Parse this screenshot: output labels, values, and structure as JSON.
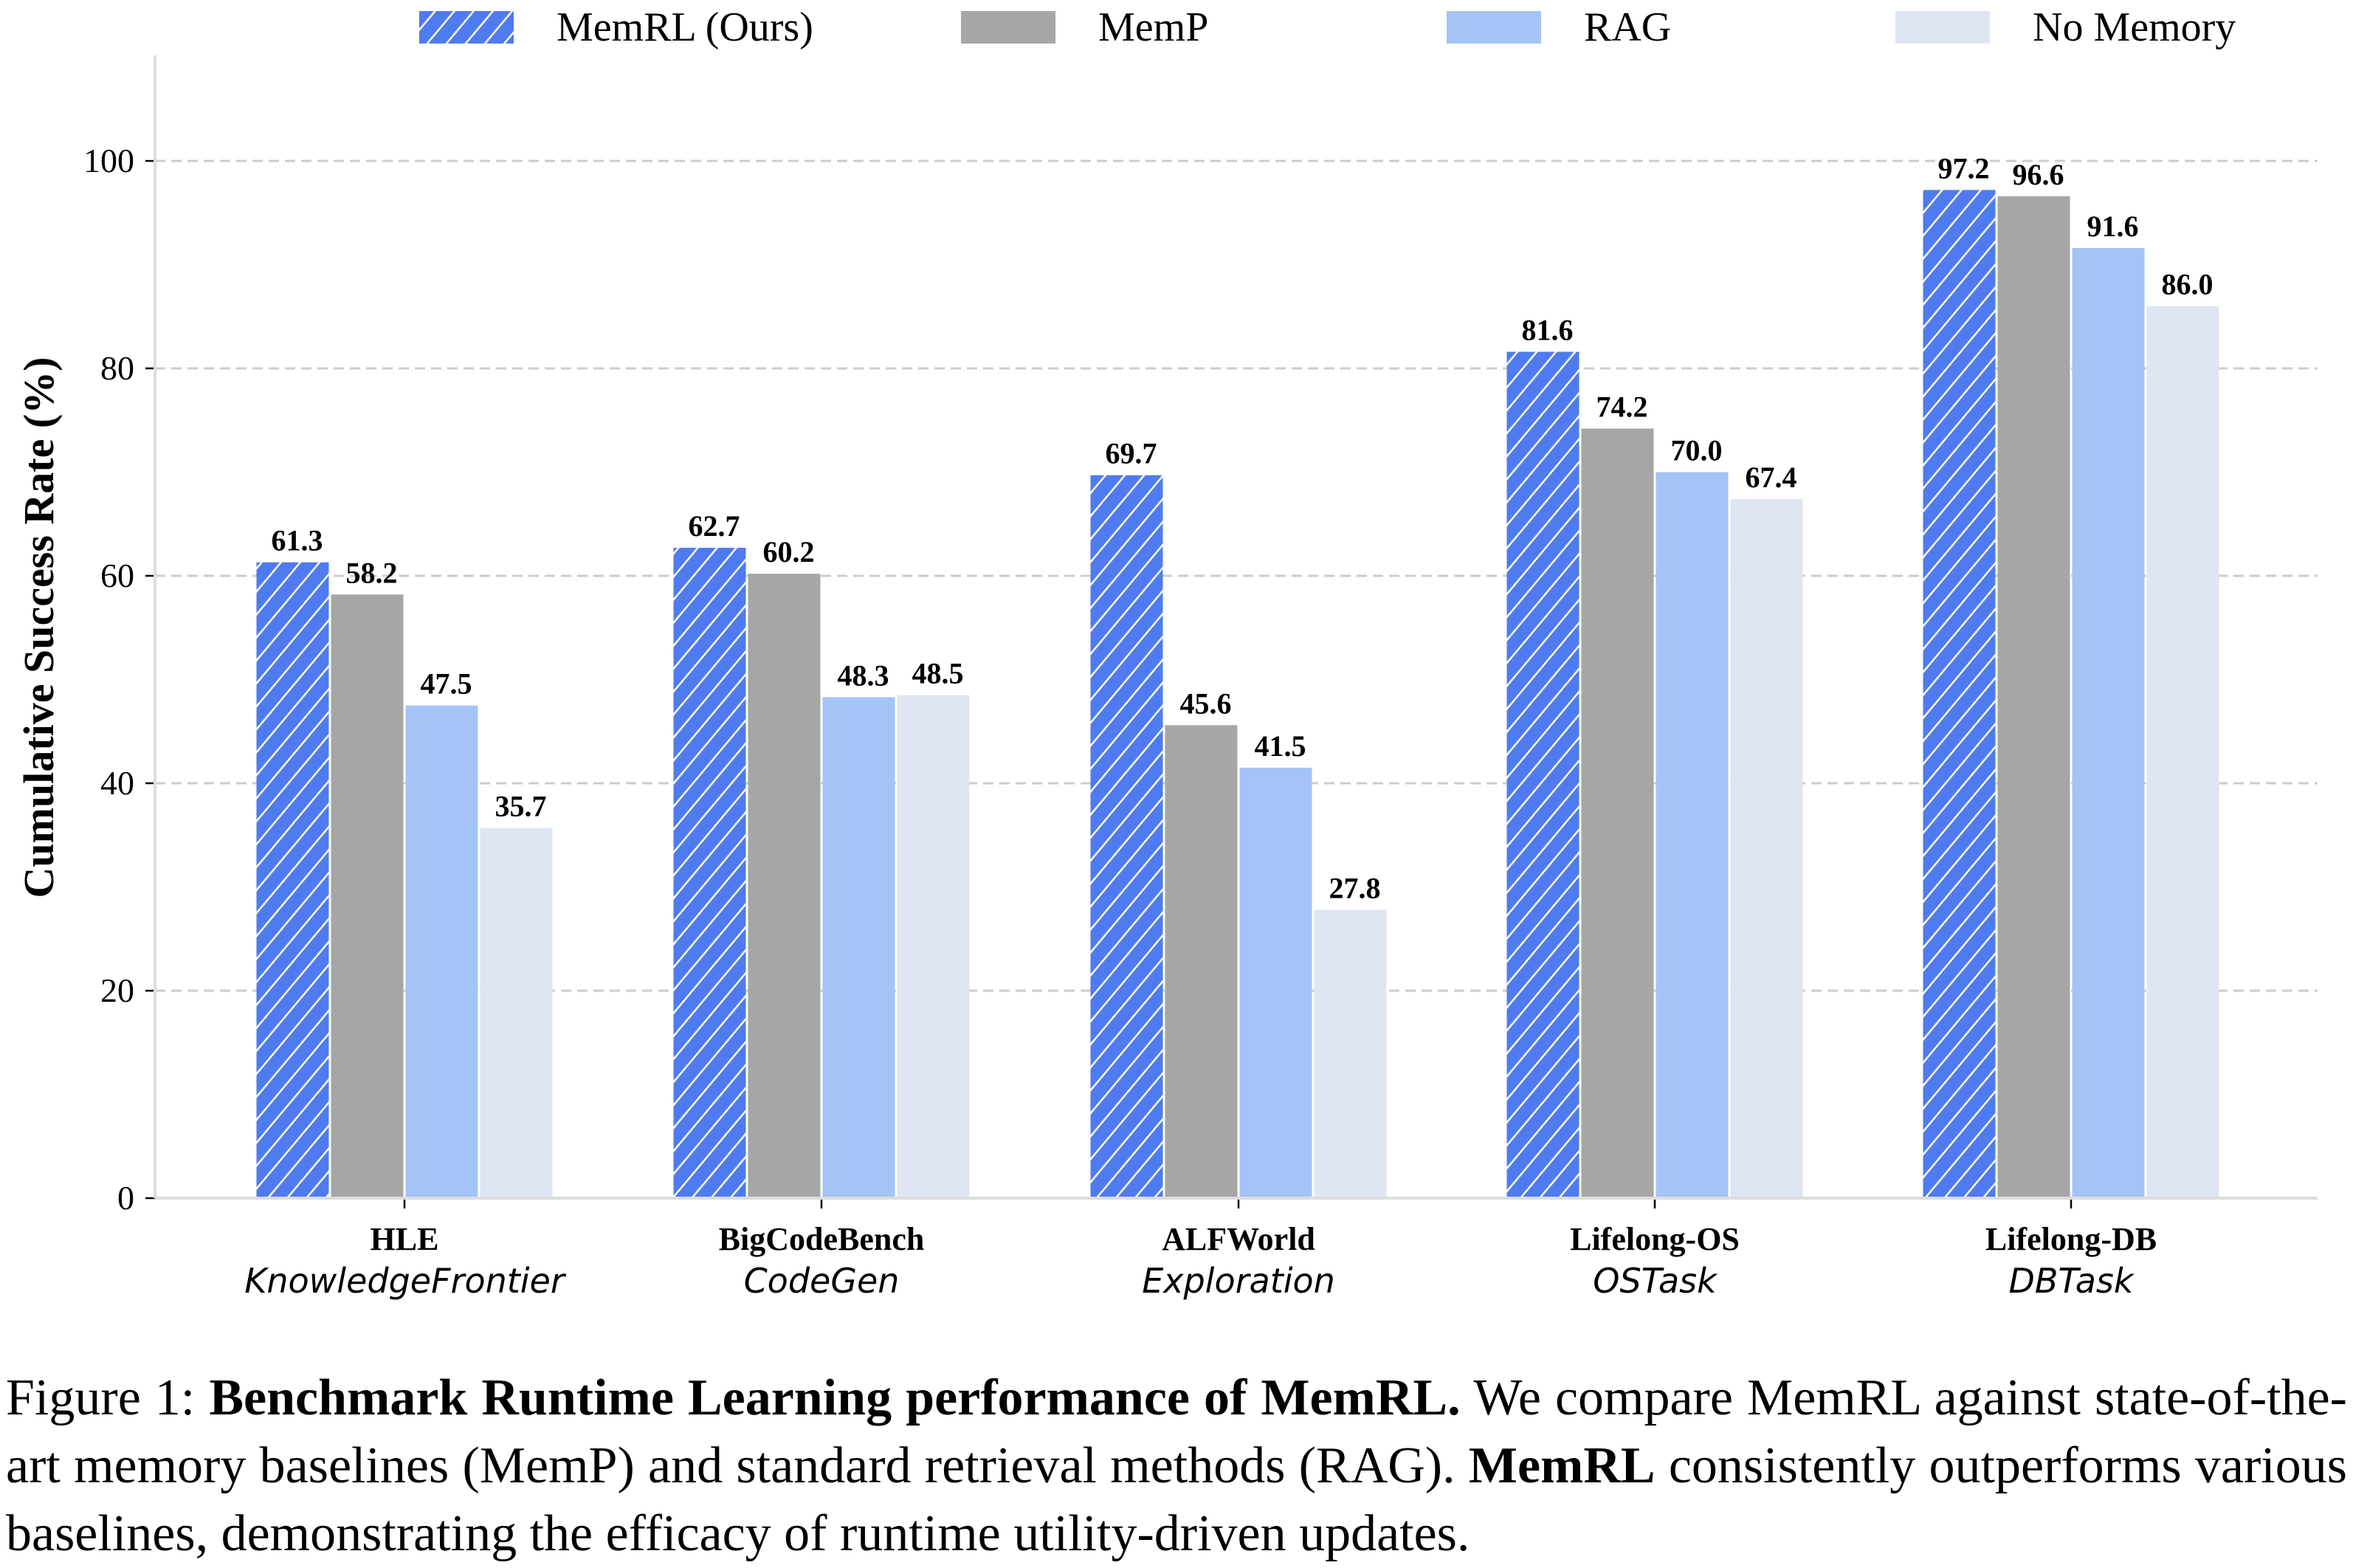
{
  "chart_data": {
    "type": "bar",
    "title": "",
    "xlabel": "",
    "ylabel": "Cumulative Success Rate (%)",
    "ylim": [
      0,
      110
    ],
    "yticks": [
      0,
      20,
      40,
      60,
      80,
      100
    ],
    "grid": "y-dashed",
    "legend": "top-center",
    "categories": [
      {
        "name": "HLE",
        "subtitle": "KnowledgeFrontier"
      },
      {
        "name": "BigCodeBench",
        "subtitle": "CodeGen"
      },
      {
        "name": "ALFWorld",
        "subtitle": "Exploration"
      },
      {
        "name": "Lifelong-OS",
        "subtitle": "OSTask"
      },
      {
        "name": "Lifelong-DB",
        "subtitle": "DBTask"
      }
    ],
    "series": [
      {
        "name": "MemRL (Ours)",
        "color": "#4f7bf0",
        "hatch": true,
        "values": [
          61.3,
          62.7,
          69.7,
          81.6,
          97.2
        ]
      },
      {
        "name": "MemP",
        "color": "#a6a6a6",
        "hatch": false,
        "values": [
          58.2,
          60.2,
          45.6,
          74.2,
          96.6
        ]
      },
      {
        "name": "RAG",
        "color": "#a4c4f7",
        "hatch": false,
        "values": [
          47.5,
          48.3,
          41.5,
          70.0,
          91.6
        ]
      },
      {
        "name": "No Memory",
        "color": "#dfe5f2",
        "hatch": false,
        "values": [
          35.7,
          48.5,
          27.8,
          67.4,
          86.0
        ]
      }
    ]
  },
  "caption": {
    "prefix": "Figure 1: ",
    "bold_title": "Benchmark Runtime Learning performance of MemRL.",
    "sentence1": " We compare MemRL against state-of-the-art memory baselines (MemP) and standard retrieval methods (RAG). ",
    "bold_name": "MemRL",
    "sentence2": " consistently outperforms various baselines, demonstrating the efficacy of runtime utility-driven updates."
  }
}
